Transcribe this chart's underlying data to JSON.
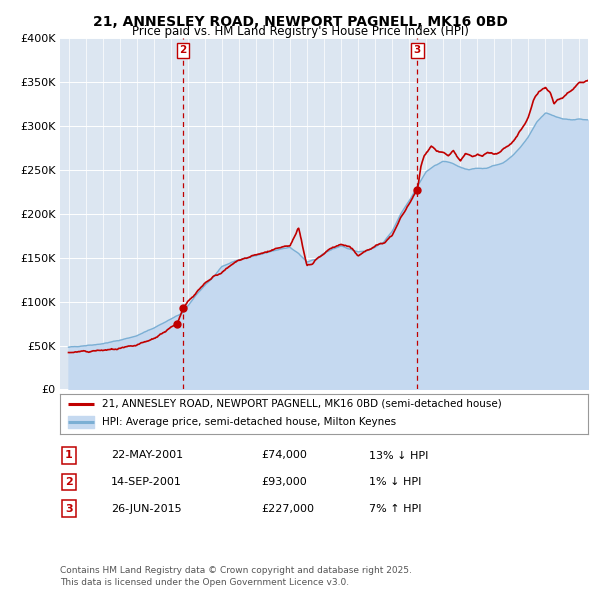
{
  "title": "21, ANNESLEY ROAD, NEWPORT PAGNELL, MK16 0BD",
  "subtitle": "Price paid vs. HM Land Registry's House Price Index (HPI)",
  "legend_line1": "21, ANNESLEY ROAD, NEWPORT PAGNELL, MK16 0BD (semi-detached house)",
  "legend_line2": "HPI: Average price, semi-detached house, Milton Keynes",
  "footer": "Contains HM Land Registry data © Crown copyright and database right 2025.\nThis data is licensed under the Open Government Licence v3.0.",
  "hpi_fill_color": "#c5d9f0",
  "hpi_line_color": "#7bafd4",
  "price_color": "#c00000",
  "marker_color": "#c00000",
  "vline_color": "#c00000",
  "plot_bg_color": "#dce6f1",
  "grid_color": "#ffffff",
  "transactions": [
    {
      "label": "1",
      "date_num": 2001.38,
      "price": 74000
    },
    {
      "label": "2",
      "date_num": 2001.71,
      "price": 93000
    },
    {
      "label": "3",
      "date_num": 2015.48,
      "price": 227000
    }
  ],
  "table_rows": [
    {
      "num": "1",
      "date": "22-MAY-2001",
      "price": "£74,000",
      "pct": "13% ↓ HPI"
    },
    {
      "num": "2",
      "date": "14-SEP-2001",
      "price": "£93,000",
      "pct": "1% ↓ HPI"
    },
    {
      "num": "3",
      "date": "26-JUN-2015",
      "price": "£227,000",
      "pct": "7% ↑ HPI"
    }
  ],
  "ylim": [
    0,
    400000
  ],
  "yticks": [
    0,
    50000,
    100000,
    150000,
    200000,
    250000,
    300000,
    350000,
    400000
  ],
  "xlim_start": 1994.5,
  "xlim_end": 2025.5,
  "hpi_anchors": [
    [
      1995.0,
      48000
    ],
    [
      1996.0,
      50000
    ],
    [
      1997.0,
      52000
    ],
    [
      1998.0,
      56000
    ],
    [
      1999.0,
      61000
    ],
    [
      2000.0,
      70000
    ],
    [
      2001.0,
      80000
    ],
    [
      2001.7,
      87000
    ],
    [
      2002.5,
      108000
    ],
    [
      2003.5,
      128000
    ],
    [
      2004.0,
      140000
    ],
    [
      2005.0,
      148000
    ],
    [
      2005.5,
      150000
    ],
    [
      2006.5,
      155000
    ],
    [
      2007.5,
      160000
    ],
    [
      2008.0,
      162000
    ],
    [
      2008.5,
      155000
    ],
    [
      2009.0,
      145000
    ],
    [
      2009.5,
      148000
    ],
    [
      2010.0,
      155000
    ],
    [
      2010.5,
      160000
    ],
    [
      2011.0,
      163000
    ],
    [
      2011.5,
      160000
    ],
    [
      2012.0,
      157000
    ],
    [
      2012.5,
      158000
    ],
    [
      2013.0,
      162000
    ],
    [
      2013.5,
      168000
    ],
    [
      2014.0,
      180000
    ],
    [
      2014.5,
      200000
    ],
    [
      2015.0,
      215000
    ],
    [
      2015.5,
      232000
    ],
    [
      2016.0,
      248000
    ],
    [
      2016.5,
      255000
    ],
    [
      2017.0,
      260000
    ],
    [
      2017.5,
      258000
    ],
    [
      2018.0,
      253000
    ],
    [
      2018.5,
      250000
    ],
    [
      2019.0,
      252000
    ],
    [
      2019.5,
      252000
    ],
    [
      2020.0,
      255000
    ],
    [
      2020.5,
      258000
    ],
    [
      2021.0,
      265000
    ],
    [
      2021.5,
      275000
    ],
    [
      2022.0,
      288000
    ],
    [
      2022.5,
      305000
    ],
    [
      2023.0,
      315000
    ],
    [
      2023.5,
      312000
    ],
    [
      2024.0,
      308000
    ],
    [
      2024.5,
      307000
    ],
    [
      2025.0,
      308000
    ],
    [
      2025.5,
      307000
    ]
  ],
  "price_anchors": [
    [
      1995.0,
      42000
    ],
    [
      1996.0,
      43000
    ],
    [
      1997.0,
      44500
    ],
    [
      1998.0,
      46000
    ],
    [
      1999.0,
      50000
    ],
    [
      2000.0,
      58000
    ],
    [
      2001.0,
      70000
    ],
    [
      2001.38,
      74000
    ],
    [
      2001.71,
      93000
    ],
    [
      2002.0,
      100000
    ],
    [
      2002.5,
      110000
    ],
    [
      2003.0,
      120000
    ],
    [
      2003.5,
      128000
    ],
    [
      2004.0,
      133000
    ],
    [
      2005.0,
      148000
    ],
    [
      2005.5,
      150000
    ],
    [
      2006.0,
      153000
    ],
    [
      2006.5,
      156000
    ],
    [
      2007.0,
      158000
    ],
    [
      2007.5,
      162000
    ],
    [
      2008.0,
      163000
    ],
    [
      2008.5,
      185000
    ],
    [
      2009.0,
      140000
    ],
    [
      2009.3,
      143000
    ],
    [
      2009.5,
      148000
    ],
    [
      2010.0,
      155000
    ],
    [
      2010.5,
      162000
    ],
    [
      2011.0,
      165000
    ],
    [
      2011.5,
      162000
    ],
    [
      2012.0,
      153000
    ],
    [
      2012.5,
      158000
    ],
    [
      2013.0,
      163000
    ],
    [
      2013.5,
      167000
    ],
    [
      2014.0,
      175000
    ],
    [
      2014.5,
      195000
    ],
    [
      2015.0,
      212000
    ],
    [
      2015.48,
      227000
    ],
    [
      2015.7,
      255000
    ],
    [
      2015.9,
      268000
    ],
    [
      2016.0,
      270000
    ],
    [
      2016.3,
      278000
    ],
    [
      2016.6,
      272000
    ],
    [
      2017.0,
      270000
    ],
    [
      2017.3,
      265000
    ],
    [
      2017.6,
      272000
    ],
    [
      2018.0,
      260000
    ],
    [
      2018.3,
      268000
    ],
    [
      2018.7,
      265000
    ],
    [
      2019.0,
      268000
    ],
    [
      2019.3,
      265000
    ],
    [
      2019.6,
      270000
    ],
    [
      2020.0,
      267000
    ],
    [
      2020.3,
      270000
    ],
    [
      2020.6,
      275000
    ],
    [
      2021.0,
      280000
    ],
    [
      2021.3,
      288000
    ],
    [
      2021.6,
      295000
    ],
    [
      2022.0,
      310000
    ],
    [
      2022.3,
      330000
    ],
    [
      2022.6,
      338000
    ],
    [
      2023.0,
      345000
    ],
    [
      2023.3,
      338000
    ],
    [
      2023.5,
      325000
    ],
    [
      2023.7,
      330000
    ],
    [
      2024.0,
      332000
    ],
    [
      2024.3,
      338000
    ],
    [
      2024.6,
      342000
    ],
    [
      2025.0,
      350000
    ],
    [
      2025.5,
      352000
    ]
  ]
}
